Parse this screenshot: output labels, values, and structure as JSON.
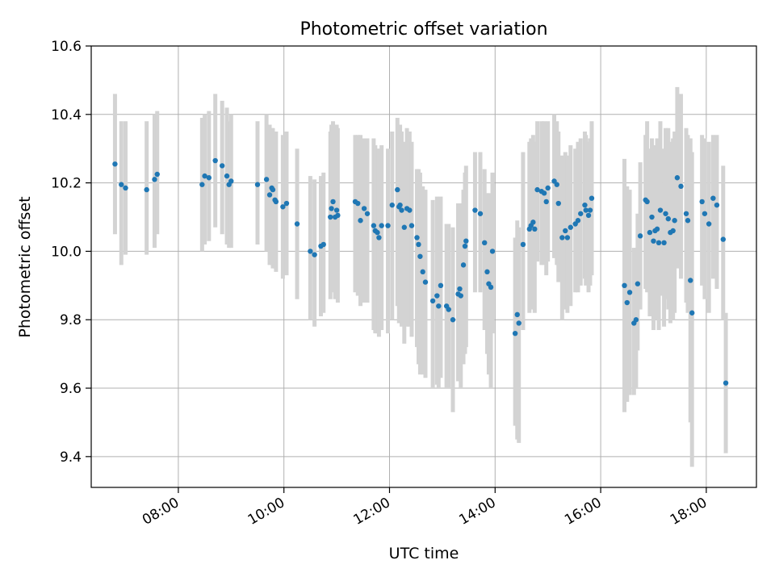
{
  "chart_data": {
    "type": "scatter",
    "title": "Photometric offset variation",
    "xlabel": "UTC time",
    "ylabel": "Photometric offset",
    "x_tick_labels": [
      "08:00",
      "10:00",
      "12:00",
      "14:00",
      "16:00",
      "18:00"
    ],
    "x_tick_hours": [
      8,
      10,
      12,
      14,
      16,
      18
    ],
    "y_tick_labels": [
      "9.4",
      "9.6",
      "9.8",
      "10.0",
      "10.2",
      "10.4",
      "10.6"
    ],
    "y_tick_values": [
      9.4,
      9.6,
      9.8,
      10.0,
      10.2,
      10.4,
      10.6
    ],
    "xlim_hours": [
      6.35,
      18.95
    ],
    "ylim": [
      9.31,
      10.6
    ],
    "grid": true,
    "colors": {
      "marker": "#1f77b4",
      "errorbar": "#d3d3d3",
      "grid": "#b0b0b0"
    },
    "series": [
      {
        "x_hours": [
          6.8,
          6.92,
          7.0,
          7.4,
          7.55,
          7.6,
          8.45,
          8.5,
          8.58,
          8.7,
          8.83,
          8.92,
          8.96,
          9.0,
          9.5,
          9.67,
          9.73,
          9.77,
          9.79,
          9.83,
          9.85,
          9.98,
          10.05,
          10.25,
          10.5,
          10.58,
          10.7,
          10.75,
          10.88,
          10.9,
          10.93,
          10.97,
          11.0,
          11.02,
          11.35,
          11.4,
          11.45,
          11.52,
          11.58,
          11.7,
          11.73,
          11.77,
          11.8,
          11.85,
          11.97,
          12.05,
          12.15,
          12.18,
          12.2,
          12.23,
          12.28,
          12.33,
          12.38,
          12.42,
          12.52,
          12.55,
          12.58,
          12.63,
          12.68,
          12.82,
          12.9,
          12.93,
          12.97,
          13.08,
          13.12,
          13.2,
          13.3,
          13.33,
          13.35,
          13.4,
          13.43,
          13.45,
          13.62,
          13.72,
          13.8,
          13.85,
          13.88,
          13.92,
          13.95,
          14.38,
          14.42,
          14.45,
          14.53,
          14.65,
          14.68,
          14.72,
          14.75,
          14.8,
          14.88,
          14.93,
          14.97,
          15.0,
          15.12,
          15.17,
          15.2,
          15.27,
          15.33,
          15.37,
          15.43,
          15.52,
          15.57,
          15.62,
          15.7,
          15.72,
          15.77,
          15.8,
          15.83,
          16.45,
          16.5,
          16.55,
          16.63,
          16.67,
          16.7,
          16.75,
          16.85,
          16.88,
          16.93,
          16.97,
          17.0,
          17.03,
          17.07,
          17.1,
          17.13,
          17.2,
          17.23,
          17.28,
          17.32,
          17.37,
          17.4,
          17.45,
          17.52,
          17.62,
          17.65,
          17.7,
          17.73,
          17.92,
          17.97,
          18.05,
          18.13,
          18.2,
          18.32,
          18.37
        ],
        "y": [
          10.255,
          10.195,
          10.185,
          10.18,
          10.21,
          10.225,
          10.195,
          10.22,
          10.215,
          10.265,
          10.25,
          10.22,
          10.195,
          10.205,
          10.195,
          10.21,
          10.165,
          10.185,
          10.18,
          10.15,
          10.145,
          10.13,
          10.14,
          10.08,
          10.0,
          9.99,
          10.015,
          10.02,
          10.1,
          10.125,
          10.145,
          10.1,
          10.12,
          10.105,
          10.145,
          10.14,
          10.09,
          10.125,
          10.11,
          10.075,
          10.06,
          10.055,
          10.04,
          10.075,
          10.075,
          10.135,
          10.18,
          10.13,
          10.135,
          10.12,
          10.07,
          10.125,
          10.12,
          10.075,
          10.04,
          10.02,
          9.985,
          9.94,
          9.91,
          9.855,
          9.87,
          9.84,
          9.9,
          9.84,
          9.83,
          9.8,
          9.875,
          9.89,
          9.87,
          9.96,
          10.015,
          10.03,
          10.12,
          10.11,
          10.025,
          9.94,
          9.905,
          9.895,
          10.0,
          9.76,
          9.815,
          9.79,
          10.02,
          10.065,
          10.075,
          10.085,
          10.065,
          10.18,
          10.175,
          10.17,
          10.145,
          10.185,
          10.205,
          10.195,
          10.14,
          10.04,
          10.06,
          10.04,
          10.07,
          10.08,
          10.09,
          10.11,
          10.135,
          10.12,
          10.105,
          10.12,
          10.155,
          9.9,
          9.85,
          9.88,
          9.79,
          9.8,
          9.905,
          10.045,
          10.15,
          10.145,
          10.055,
          10.1,
          10.03,
          10.06,
          10.065,
          10.025,
          10.12,
          10.025,
          10.11,
          10.095,
          10.055,
          10.06,
          10.09,
          10.215,
          10.19,
          10.11,
          10.09,
          9.915,
          9.82,
          10.145,
          10.11,
          10.08,
          10.155,
          10.135,
          10.035,
          9.615
        ],
        "yerr_low": [
          10.05,
          9.96,
          9.99,
          9.99,
          10.01,
          10.05,
          10.0,
          10.02,
          10.03,
          10.07,
          10.05,
          10.02,
          10.01,
          10.01,
          10.02,
          10.0,
          9.96,
          9.96,
          9.95,
          9.95,
          9.94,
          9.92,
          9.93,
          9.86,
          9.8,
          9.78,
          9.81,
          9.82,
          9.86,
          9.88,
          9.91,
          9.86,
          9.88,
          9.85,
          9.88,
          9.87,
          9.84,
          9.85,
          9.85,
          9.77,
          9.76,
          9.76,
          9.75,
          9.77,
          9.76,
          9.8,
          9.84,
          9.79,
          9.8,
          9.78,
          9.73,
          9.78,
          9.78,
          9.75,
          9.72,
          9.67,
          9.64,
          9.64,
          9.63,
          9.6,
          9.61,
          9.6,
          9.63,
          9.6,
          9.6,
          9.53,
          9.62,
          9.62,
          9.6,
          9.67,
          9.7,
          9.72,
          9.88,
          9.88,
          9.77,
          9.7,
          9.64,
          9.6,
          9.76,
          9.49,
          9.45,
          9.44,
          9.77,
          9.82,
          9.83,
          9.86,
          9.82,
          9.97,
          9.96,
          9.96,
          9.93,
          9.97,
          9.98,
          9.96,
          9.91,
          9.8,
          9.83,
          9.82,
          9.84,
          9.88,
          9.88,
          9.9,
          9.92,
          9.9,
          9.88,
          9.9,
          9.93,
          9.53,
          9.56,
          9.58,
          9.58,
          9.6,
          9.71,
          9.83,
          9.89,
          9.88,
          9.81,
          9.85,
          9.77,
          9.8,
          9.81,
          9.77,
          9.87,
          9.78,
          9.86,
          9.83,
          9.79,
          9.8,
          9.82,
          9.95,
          9.92,
          9.85,
          9.82,
          9.5,
          9.37,
          9.9,
          9.86,
          9.82,
          9.92,
          9.89,
          9.8,
          9.41
        ],
        "yerr_high": [
          10.46,
          10.38,
          10.38,
          10.38,
          10.4,
          10.41,
          10.39,
          10.4,
          10.41,
          10.46,
          10.44,
          10.42,
          10.38,
          10.4,
          10.38,
          10.4,
          10.37,
          10.36,
          10.36,
          10.35,
          10.35,
          10.34,
          10.35,
          10.3,
          10.22,
          10.21,
          10.22,
          10.23,
          10.35,
          10.37,
          10.38,
          10.35,
          10.37,
          10.36,
          10.34,
          10.34,
          10.34,
          10.33,
          10.33,
          10.33,
          10.31,
          10.3,
          10.3,
          10.31,
          10.3,
          10.35,
          10.39,
          10.35,
          10.37,
          10.35,
          10.32,
          10.36,
          10.35,
          10.32,
          10.24,
          10.24,
          10.23,
          10.19,
          10.18,
          10.15,
          10.16,
          10.14,
          10.16,
          10.08,
          10.08,
          10.07,
          10.14,
          10.14,
          10.14,
          10.18,
          10.23,
          10.25,
          10.29,
          10.29,
          10.24,
          10.17,
          10.17,
          10.15,
          10.23,
          10.04,
          10.09,
          10.07,
          10.29,
          10.32,
          10.33,
          10.34,
          10.32,
          10.38,
          10.38,
          10.38,
          10.37,
          10.38,
          10.4,
          10.38,
          10.35,
          10.28,
          10.29,
          10.28,
          10.31,
          10.3,
          10.32,
          10.33,
          10.35,
          10.34,
          10.32,
          10.33,
          10.38,
          10.27,
          10.19,
          10.18,
          10.01,
          10.01,
          10.11,
          10.26,
          10.34,
          10.38,
          10.3,
          10.33,
          10.28,
          10.31,
          10.33,
          10.29,
          10.38,
          10.3,
          10.36,
          10.36,
          10.32,
          10.33,
          10.35,
          10.48,
          10.46,
          10.36,
          10.34,
          10.33,
          10.29,
          10.34,
          10.33,
          10.32,
          10.34,
          10.34,
          10.25,
          9.82
        ]
      }
    ]
  }
}
